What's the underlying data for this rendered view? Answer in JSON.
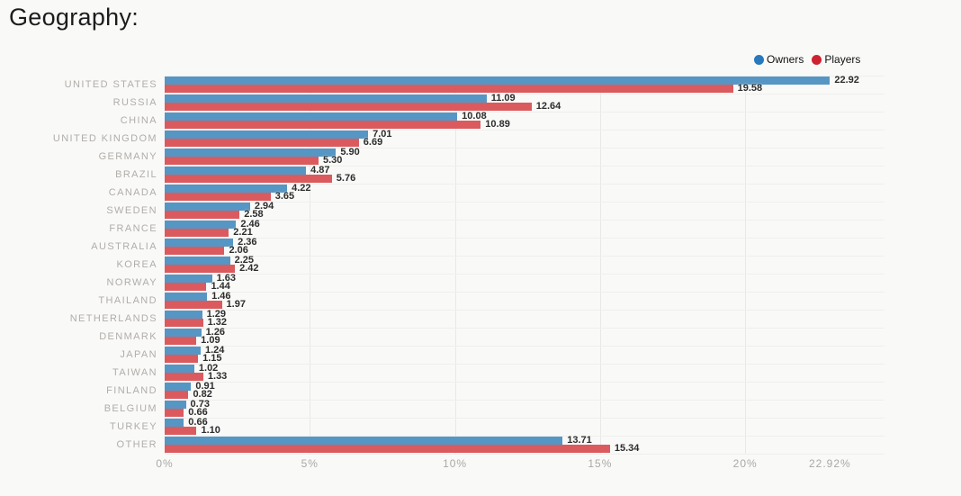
{
  "page": {
    "background": "#f9f9f8"
  },
  "title": "Geography:",
  "legend": {
    "items": [
      {
        "label": "Owners",
        "color": "#2878be"
      },
      {
        "label": "Players",
        "color": "#cd2331"
      }
    ]
  },
  "chart_data": {
    "type": "bar",
    "orientation": "horizontal",
    "title": "Geography:",
    "xlabel": "",
    "ylabel": "",
    "xlim": [
      0,
      24.8
    ],
    "grid": "vertical gridlines at 5% steps, horizontal separators between category rows",
    "legend_position": "top-right",
    "categories": [
      "UNITED STATES",
      "RUSSIA",
      "CHINA",
      "UNITED KINGDOM",
      "GERMANY",
      "BRAZIL",
      "CANADA",
      "SWEDEN",
      "FRANCE",
      "AUSTRALIA",
      "KOREA",
      "NORWAY",
      "THAILAND",
      "NETHERLANDS",
      "DENMARK",
      "JAPAN",
      "TAIWAN",
      "FINLAND",
      "BELGIUM",
      "TURKEY",
      "OTHER"
    ],
    "series": [
      {
        "name": "Owners",
        "color": "#5596c4",
        "values": [
          22.92,
          11.09,
          10.08,
          7.01,
          5.9,
          4.87,
          4.22,
          2.94,
          2.46,
          2.36,
          2.25,
          1.63,
          1.46,
          1.29,
          1.26,
          1.24,
          1.02,
          0.91,
          0.73,
          0.66,
          13.71
        ]
      },
      {
        "name": "Players",
        "color": "#db5a5e",
        "values": [
          19.58,
          12.64,
          10.89,
          6.69,
          5.3,
          5.76,
          3.65,
          2.58,
          2.21,
          2.06,
          2.42,
          1.44,
          1.97,
          1.32,
          1.09,
          1.15,
          1.33,
          0.82,
          0.66,
          1.1,
          15.34
        ]
      }
    ],
    "x_ticks": [
      {
        "value": 0,
        "label": "0%",
        "grid": true
      },
      {
        "value": 5,
        "label": "5%",
        "grid": true
      },
      {
        "value": 10,
        "label": "10%",
        "grid": true
      },
      {
        "value": 15,
        "label": "15%",
        "grid": true
      },
      {
        "value": 20,
        "label": "20%",
        "grid": true
      },
      {
        "value": 22.92,
        "label": "22.92%",
        "grid": false
      }
    ],
    "value_labels": "each bar labeled with value to 2 decimals"
  }
}
